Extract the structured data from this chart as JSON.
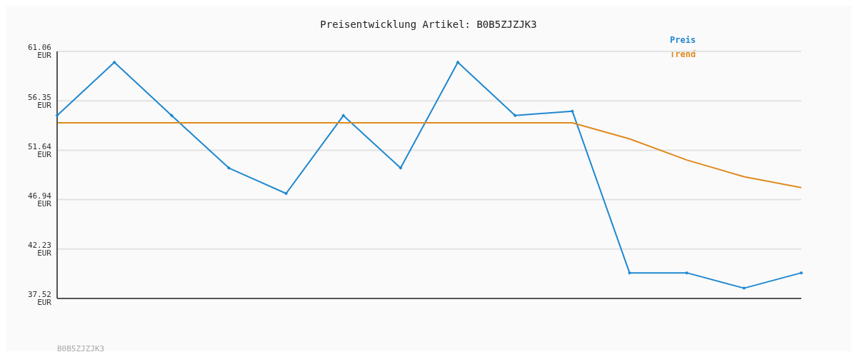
{
  "chart_data": {
    "type": "line",
    "title": "Preisentwicklung Artikel: B0B5ZJZJK3",
    "categories": [
      null,
      null,
      null,
      null,
      null,
      null,
      null,
      null,
      null,
      null,
      null,
      null,
      null,
      null
    ],
    "series": [
      {
        "name": "Preis",
        "color": "#1f88d0",
        "marker": "diamond",
        "values": [
          54.95,
          60.02,
          54.95,
          49.95,
          47.52,
          54.95,
          49.95,
          60.02,
          54.95,
          55.37,
          39.96,
          39.96,
          38.5,
          39.96
        ]
      },
      {
        "name": "Trend",
        "color": "#e08a1e",
        "marker": "none",
        "values": [
          54.26,
          54.26,
          54.26,
          54.26,
          54.26,
          54.26,
          54.26,
          54.26,
          54.26,
          54.26,
          52.73,
          50.71,
          49.12,
          48.08
        ]
      }
    ],
    "ylim": [
      37.52,
      61.06
    ],
    "yticks": [
      {
        "value": 37.52,
        "label": "37.52 EUR"
      },
      {
        "value": 42.23,
        "label": "42.23 EUR"
      },
      {
        "value": 46.94,
        "label": "46.94 EUR"
      },
      {
        "value": 51.64,
        "label": "51.64 EUR"
      },
      {
        "value": 56.35,
        "label": "56.35 EUR"
      },
      {
        "value": 61.06,
        "label": "61.06 EUR"
      }
    ],
    "grid": "y",
    "legend": "top right",
    "line_style": "solid",
    "annotations": [
      "B0B5ZJZJK3"
    ]
  }
}
